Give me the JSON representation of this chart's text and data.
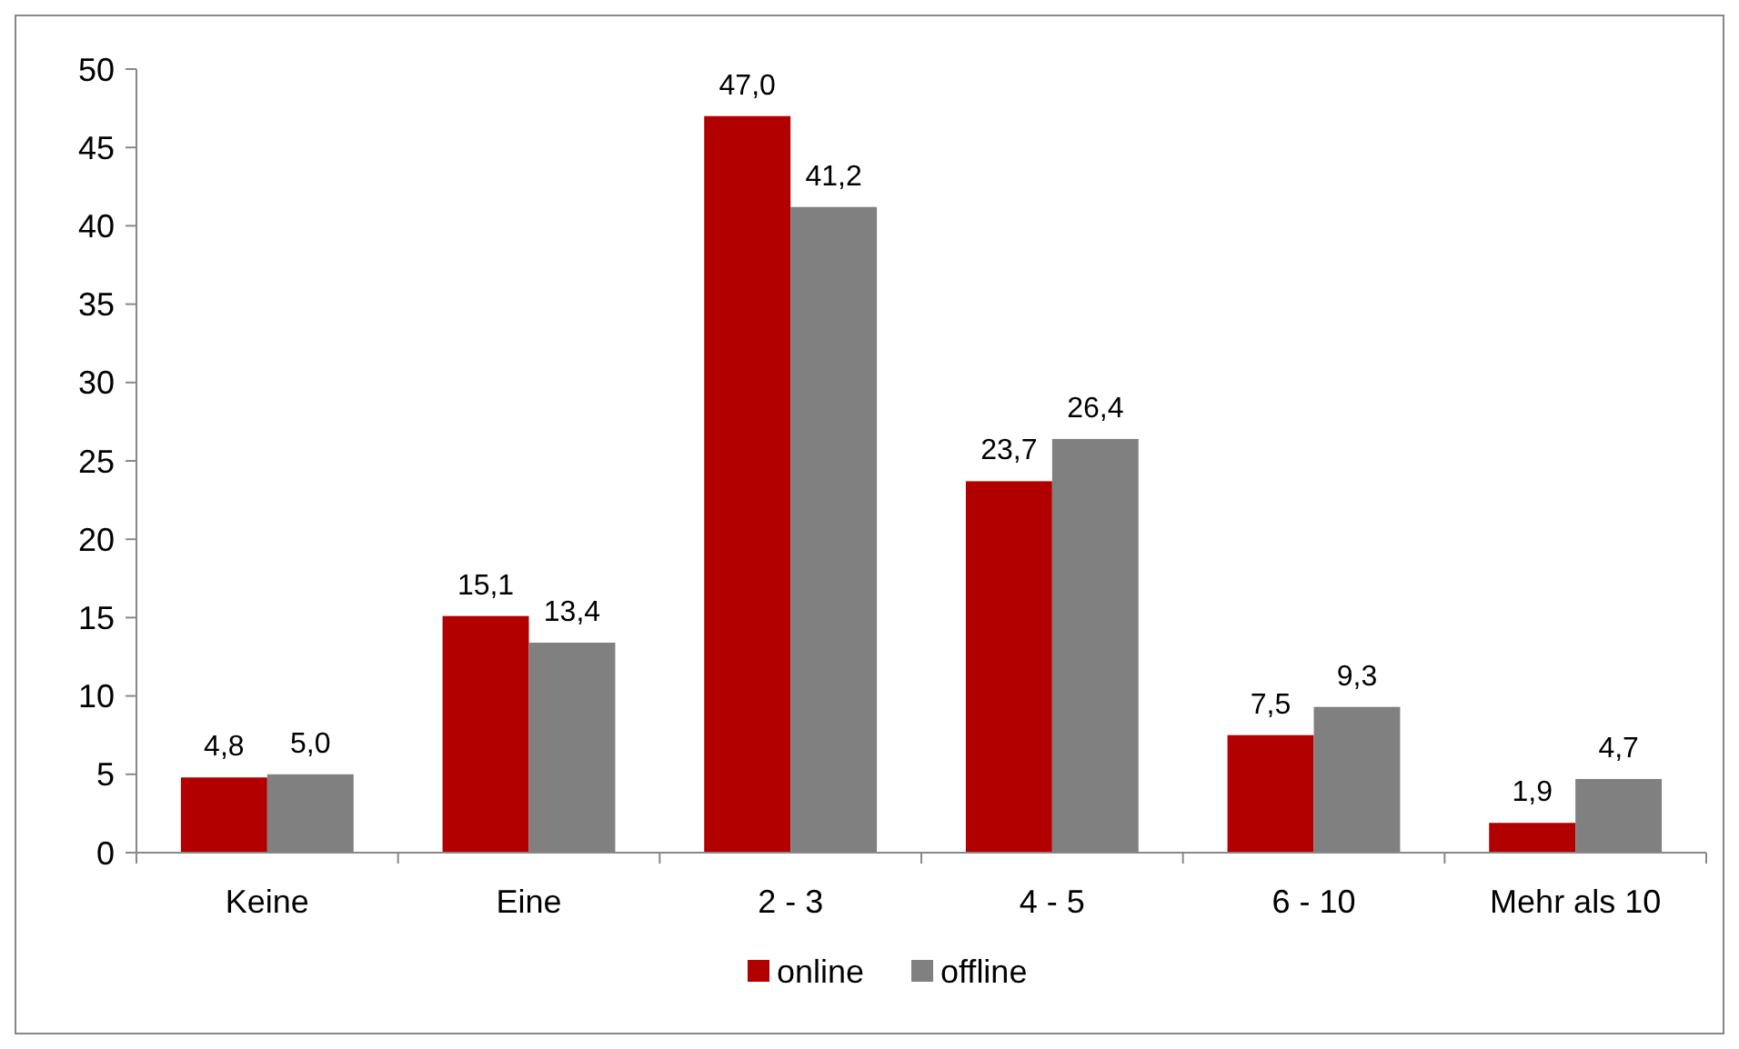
{
  "chart_data": {
    "type": "bar",
    "categories": [
      "Keine",
      "Eine",
      "2 - 3",
      "4 - 5",
      "6 - 10",
      "Mehr als 10"
    ],
    "series": [
      {
        "name": "online",
        "color": "#b20000",
        "values": [
          4.8,
          15.1,
          47.0,
          23.7,
          7.5,
          1.9
        ],
        "value_labels": [
          "4,8",
          "15,1",
          "47,0",
          "23,7",
          "7,5",
          "1,9"
        ]
      },
      {
        "name": "offline",
        "color": "#808080",
        "values": [
          5.0,
          13.4,
          41.2,
          26.4,
          9.3,
          4.7
        ],
        "value_labels": [
          "5,0",
          "13,4",
          "41,2",
          "26,4",
          "9,3",
          "4,7"
        ]
      }
    ],
    "ylim": [
      0,
      50
    ],
    "yticks": [
      0,
      5,
      10,
      15,
      20,
      25,
      30,
      35,
      40,
      45,
      50
    ],
    "grid": false,
    "legend": "bottom"
  }
}
